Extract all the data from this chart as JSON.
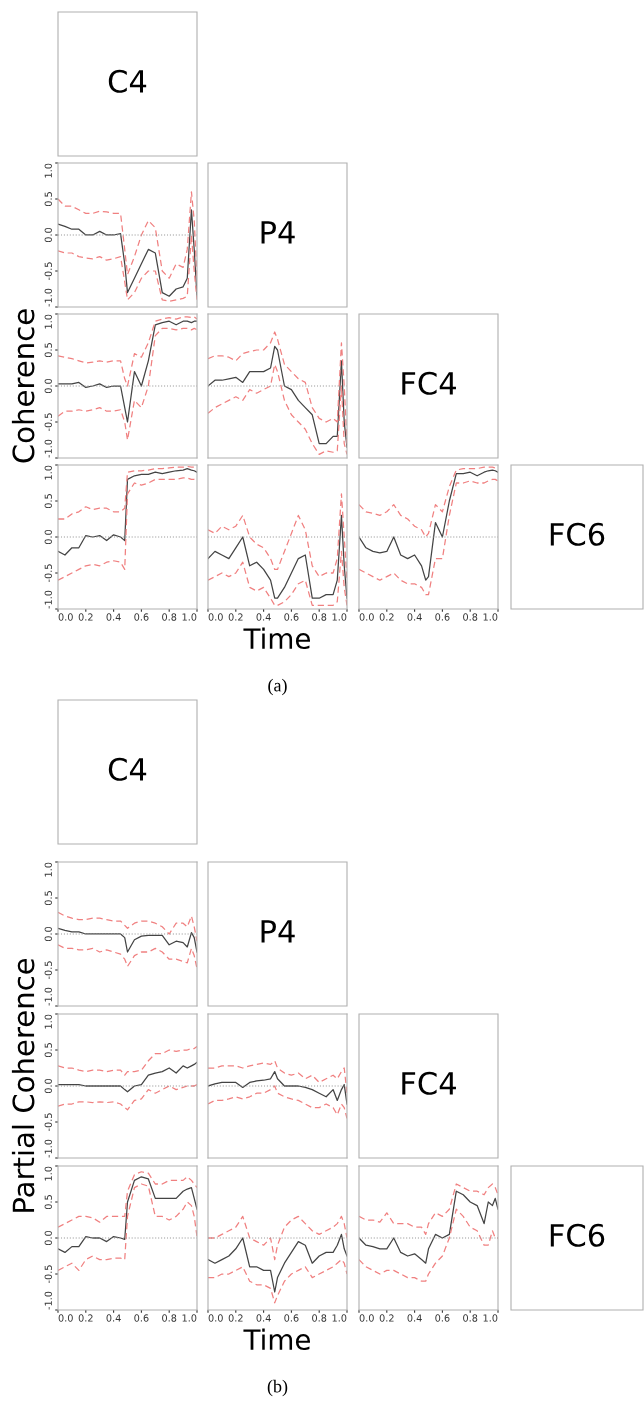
{
  "chart_data": [
    {
      "type": "other",
      "title": "C4"
    },
    {
      "type": "line",
      "x": [
        0,
        0.05,
        0.1,
        0.15,
        0.2,
        0.25,
        0.3,
        0.35,
        0.4,
        0.45,
        0.48,
        0.5,
        0.55,
        0.6,
        0.65,
        0.7,
        0.75,
        0.8,
        0.85,
        0.9,
        0.93,
        0.96,
        0.98,
        1.0
      ],
      "xlim": [
        0,
        1
      ],
      "ylim": [
        -1,
        1
      ],
      "yticks": [
        {
          "value": -1,
          "label": "-1.0"
        },
        {
          "value": -0.5,
          "label": "-0.5"
        },
        {
          "value": 0,
          "label": "0.0"
        },
        {
          "value": 0.5,
          "label": "0.5"
        },
        {
          "value": 1,
          "label": "1.0"
        }
      ],
      "tick_labels": "y",
      "ref_lines": [
        {
          "axis": "y",
          "value": 0,
          "color": "#999999",
          "line_style": "dotted"
        }
      ],
      "series": [
        {
          "color": "#444444",
          "values": [
            0.15,
            0.12,
            0.08,
            0.08,
            0.0,
            0.0,
            0.05,
            0.0,
            0.0,
            0.02,
            -0.4,
            -0.8,
            -0.6,
            -0.4,
            -0.2,
            -0.25,
            -0.8,
            -0.85,
            -0.75,
            -0.72,
            -0.6,
            0.35,
            -0.2,
            -0.85
          ]
        },
        {
          "color": "#f08080",
          "line_style": "dashed",
          "values": [
            0.5,
            0.4,
            0.4,
            0.35,
            0.3,
            0.3,
            0.33,
            0.32,
            0.3,
            0.3,
            -0.2,
            -0.55,
            -0.3,
            0.0,
            0.2,
            0.1,
            -0.5,
            -0.6,
            -0.4,
            -0.45,
            -0.2,
            0.6,
            0.2,
            -0.6
          ]
        },
        {
          "color": "#f08080",
          "line_style": "dashed",
          "values": [
            -0.22,
            -0.25,
            -0.25,
            -0.3,
            -0.32,
            -0.33,
            -0.3,
            -0.35,
            -0.33,
            -0.3,
            -0.65,
            -0.9,
            -0.8,
            -0.6,
            -0.5,
            -0.5,
            -0.9,
            -0.92,
            -0.9,
            -0.88,
            -0.85,
            0.0,
            -0.5,
            -0.9
          ]
        }
      ]
    },
    {
      "type": "other",
      "title": "P4"
    },
    {
      "type": "line",
      "ylabel": "Coherence",
      "x": [
        0,
        0.05,
        0.1,
        0.15,
        0.2,
        0.25,
        0.3,
        0.35,
        0.4,
        0.45,
        0.48,
        0.5,
        0.55,
        0.6,
        0.65,
        0.7,
        0.75,
        0.8,
        0.85,
        0.9,
        0.93,
        0.96,
        0.98,
        1.0
      ],
      "xlim": [
        0,
        1
      ],
      "ylim": [
        -1,
        1
      ],
      "yticks": [
        {
          "value": -1,
          "label": "-1.0"
        },
        {
          "value": -0.5,
          "label": "-0.5"
        },
        {
          "value": 0,
          "label": "0.0"
        },
        {
          "value": 0.5,
          "label": "0.5"
        },
        {
          "value": 1,
          "label": "1.0"
        }
      ],
      "tick_labels": "y",
      "ref_lines": [
        {
          "axis": "y",
          "value": 0,
          "color": "#999999",
          "line_style": "dotted"
        }
      ],
      "series": [
        {
          "color": "#444444",
          "values": [
            0.03,
            0.03,
            0.03,
            0.05,
            -0.02,
            0.0,
            0.03,
            -0.02,
            0.0,
            0.0,
            -0.3,
            -0.5,
            0.2,
            0.0,
            0.35,
            0.85,
            0.88,
            0.9,
            0.85,
            0.9,
            0.9,
            0.88,
            0.9,
            0.9
          ]
        },
        {
          "color": "#f08080",
          "line_style": "dashed",
          "values": [
            0.42,
            0.4,
            0.38,
            0.35,
            0.32,
            0.33,
            0.35,
            0.33,
            0.35,
            0.35,
            0.1,
            0.0,
            0.45,
            0.4,
            0.6,
            0.9,
            0.93,
            0.95,
            0.93,
            0.96,
            0.96,
            0.95,
            0.96,
            0.93
          ]
        },
        {
          "color": "#f08080",
          "line_style": "dashed",
          "values": [
            -0.42,
            -0.35,
            -0.35,
            -0.33,
            -0.35,
            -0.33,
            -0.3,
            -0.35,
            -0.35,
            -0.33,
            -0.5,
            -0.75,
            -0.2,
            -0.3,
            0.0,
            0.7,
            0.8,
            0.8,
            0.78,
            0.8,
            0.8,
            0.78,
            0.8,
            0.78
          ]
        }
      ]
    },
    {
      "type": "line",
      "x": [
        0,
        0.05,
        0.1,
        0.15,
        0.2,
        0.25,
        0.3,
        0.35,
        0.4,
        0.45,
        0.48,
        0.5,
        0.55,
        0.6,
        0.65,
        0.7,
        0.75,
        0.8,
        0.85,
        0.9,
        0.93,
        0.96,
        0.98,
        1.0
      ],
      "xlim": [
        0,
        1
      ],
      "ylim": [
        -1,
        1
      ],
      "tick_labels": false,
      "ref_lines": [
        {
          "axis": "y",
          "value": 0,
          "color": "#999999",
          "line_style": "dotted"
        }
      ],
      "series": [
        {
          "color": "#444444",
          "values": [
            0.0,
            0.08,
            0.08,
            0.1,
            0.12,
            0.05,
            0.2,
            0.2,
            0.2,
            0.25,
            0.55,
            0.5,
            0.0,
            -0.05,
            -0.2,
            -0.3,
            -0.4,
            -0.8,
            -0.8,
            -0.7,
            -0.7,
            0.35,
            -0.5,
            -0.85
          ]
        },
        {
          "color": "#f08080",
          "line_style": "dashed",
          "values": [
            0.38,
            0.42,
            0.42,
            0.4,
            0.35,
            0.45,
            0.48,
            0.5,
            0.5,
            0.6,
            0.75,
            0.65,
            0.3,
            0.2,
            0.1,
            0.05,
            -0.3,
            -0.45,
            -0.5,
            -0.45,
            -0.5,
            0.6,
            0.0,
            -0.8
          ]
        },
        {
          "color": "#f08080",
          "line_style": "dashed",
          "values": [
            -0.38,
            -0.3,
            -0.25,
            -0.2,
            -0.15,
            -0.2,
            -0.05,
            -0.1,
            -0.05,
            0.0,
            0.3,
            0.2,
            -0.2,
            -0.4,
            -0.5,
            -0.6,
            -0.8,
            -0.95,
            -0.9,
            -0.92,
            -0.9,
            0.0,
            -0.8,
            -0.95
          ]
        }
      ]
    },
    {
      "type": "other",
      "title": "FC4"
    },
    {
      "type": "line",
      "x": [
        0,
        0.05,
        0.1,
        0.15,
        0.2,
        0.25,
        0.3,
        0.35,
        0.4,
        0.45,
        0.48,
        0.5,
        0.55,
        0.6,
        0.65,
        0.7,
        0.75,
        0.8,
        0.85,
        0.9,
        0.93,
        0.96,
        0.98,
        1.0
      ],
      "xlim": [
        0,
        1
      ],
      "ylim": [
        -1,
        1
      ],
      "xticks": [
        {
          "value": 0,
          "label": "0.0"
        },
        {
          "value": 0.2,
          "label": "0.2"
        },
        {
          "value": 0.4,
          "label": "0.4"
        },
        {
          "value": 0.6,
          "label": "0.6"
        },
        {
          "value": 0.8,
          "label": "0.8"
        },
        {
          "value": 1,
          "label": "1.0"
        }
      ],
      "yticks": [
        {
          "value": -1,
          "label": "-1.0"
        },
        {
          "value": -0.5,
          "label": "-0.5"
        },
        {
          "value": 0,
          "label": "0.0"
        },
        {
          "value": 0.5,
          "label": "0.5"
        },
        {
          "value": 1,
          "label": "1.0"
        }
      ],
      "ref_lines": [
        {
          "axis": "y",
          "value": 0,
          "color": "#999999",
          "line_style": "dotted"
        }
      ],
      "series": [
        {
          "color": "#444444",
          "values": [
            -0.2,
            -0.25,
            -0.15,
            -0.15,
            0.02,
            0.0,
            0.02,
            -0.05,
            0.03,
            0.0,
            -0.05,
            0.8,
            0.85,
            0.87,
            0.87,
            0.9,
            0.88,
            0.9,
            0.92,
            0.93,
            0.95,
            0.93,
            0.92,
            0.9
          ]
        },
        {
          "color": "#f08080",
          "line_style": "dashed",
          "values": [
            0.25,
            0.25,
            0.32,
            0.35,
            0.42,
            0.38,
            0.4,
            0.4,
            0.35,
            0.35,
            0.4,
            0.9,
            0.92,
            0.92,
            0.93,
            0.95,
            0.95,
            0.96,
            0.97,
            0.97,
            0.98,
            0.97,
            0.97,
            0.96
          ]
        },
        {
          "color": "#f08080",
          "line_style": "dashed",
          "values": [
            -0.6,
            -0.55,
            -0.5,
            -0.45,
            -0.4,
            -0.38,
            -0.4,
            -0.35,
            -0.33,
            -0.35,
            -0.45,
            0.6,
            0.75,
            0.72,
            0.75,
            0.8,
            0.8,
            0.8,
            0.8,
            0.82,
            0.82,
            0.8,
            0.8,
            0.78
          ]
        }
      ]
    },
    {
      "type": "line",
      "xlabel": "Time",
      "annotations": [
        "(a)"
      ],
      "x": [
        0,
        0.05,
        0.1,
        0.15,
        0.2,
        0.25,
        0.3,
        0.35,
        0.4,
        0.45,
        0.48,
        0.5,
        0.55,
        0.6,
        0.65,
        0.7,
        0.75,
        0.8,
        0.85,
        0.9,
        0.93,
        0.96,
        0.98,
        1.0
      ],
      "xlim": [
        0,
        1
      ],
      "ylim": [
        -1,
        1
      ],
      "xticks": [
        {
          "value": 0,
          "label": "0.0"
        },
        {
          "value": 0.2,
          "label": "0.2"
        },
        {
          "value": 0.4,
          "label": "0.4"
        },
        {
          "value": 0.6,
          "label": "0.6"
        },
        {
          "value": 0.8,
          "label": "0.8"
        },
        {
          "value": 1,
          "label": "1.0"
        }
      ],
      "tick_labels": "x",
      "ref_lines": [
        {
          "axis": "y",
          "value": 0,
          "color": "#999999",
          "line_style": "dotted"
        }
      ],
      "series": [
        {
          "color": "#444444",
          "values": [
            -0.3,
            -0.2,
            -0.25,
            -0.3,
            -0.15,
            0.0,
            -0.4,
            -0.35,
            -0.45,
            -0.6,
            -0.85,
            -0.85,
            -0.7,
            -0.5,
            -0.3,
            -0.25,
            -0.85,
            -0.85,
            -0.8,
            -0.8,
            -0.6,
            0.3,
            -0.4,
            -0.85
          ]
        },
        {
          "color": "#f08080",
          "line_style": "dashed",
          "values": [
            0.1,
            0.05,
            0.15,
            0.1,
            0.15,
            0.3,
            0.0,
            -0.1,
            -0.15,
            -0.3,
            -0.45,
            -0.45,
            -0.2,
            0.05,
            0.3,
            0.1,
            -0.4,
            -0.55,
            -0.5,
            -0.5,
            -0.3,
            0.6,
            0.0,
            -0.6
          ]
        },
        {
          "color": "#f08080",
          "line_style": "dashed",
          "values": [
            -0.6,
            -0.55,
            -0.5,
            -0.55,
            -0.5,
            -0.35,
            -0.7,
            -0.75,
            -0.7,
            -0.85,
            -0.95,
            -0.95,
            -0.9,
            -0.8,
            -0.65,
            -0.6,
            -0.95,
            -0.95,
            -0.95,
            -0.95,
            -0.9,
            -0.2,
            -0.7,
            -0.95
          ]
        }
      ]
    },
    {
      "type": "line",
      "x": [
        0,
        0.05,
        0.1,
        0.15,
        0.2,
        0.25,
        0.3,
        0.35,
        0.4,
        0.45,
        0.48,
        0.5,
        0.55,
        0.6,
        0.65,
        0.7,
        0.75,
        0.8,
        0.85,
        0.9,
        0.93,
        0.96,
        0.98,
        1.0
      ],
      "xlim": [
        0,
        1
      ],
      "ylim": [
        -1,
        1
      ],
      "xticks": [
        {
          "value": 0,
          "label": "0.0"
        },
        {
          "value": 0.2,
          "label": "0.2"
        },
        {
          "value": 0.4,
          "label": "0.4"
        },
        {
          "value": 0.6,
          "label": "0.6"
        },
        {
          "value": 0.8,
          "label": "0.8"
        },
        {
          "value": 1,
          "label": "1.0"
        }
      ],
      "tick_labels": "x",
      "ref_lines": [
        {
          "axis": "y",
          "value": 0,
          "color": "#999999",
          "line_style": "dotted"
        }
      ],
      "series": [
        {
          "color": "#444444",
          "values": [
            0.0,
            -0.15,
            -0.2,
            -0.22,
            -0.2,
            0.0,
            -0.25,
            -0.3,
            -0.25,
            -0.4,
            -0.6,
            -0.55,
            0.2,
            0.0,
            0.5,
            0.88,
            0.88,
            0.9,
            0.85,
            0.9,
            0.92,
            0.93,
            0.92,
            0.9
          ]
        },
        {
          "color": "#f08080",
          "line_style": "dashed",
          "values": [
            0.45,
            0.35,
            0.33,
            0.3,
            0.35,
            0.45,
            0.3,
            0.25,
            0.15,
            0.1,
            0.0,
            0.05,
            0.45,
            0.35,
            0.7,
            0.93,
            0.95,
            0.95,
            0.95,
            0.97,
            0.97,
            0.97,
            0.96,
            0.95
          ]
        },
        {
          "color": "#f08080",
          "line_style": "dashed",
          "values": [
            -0.45,
            -0.5,
            -0.55,
            -0.6,
            -0.55,
            -0.5,
            -0.6,
            -0.65,
            -0.65,
            -0.7,
            -0.8,
            -0.8,
            -0.3,
            -0.3,
            0.3,
            0.75,
            0.75,
            0.78,
            0.75,
            0.75,
            0.78,
            0.8,
            0.8,
            0.78
          ]
        }
      ]
    },
    {
      "type": "other",
      "title": "FC6"
    },
    {
      "type": "other",
      "title": "C4"
    },
    {
      "type": "line",
      "x": [
        0,
        0.05,
        0.1,
        0.15,
        0.2,
        0.25,
        0.3,
        0.35,
        0.4,
        0.45,
        0.48,
        0.5,
        0.55,
        0.6,
        0.65,
        0.7,
        0.75,
        0.8,
        0.85,
        0.9,
        0.93,
        0.96,
        0.98,
        1.0
      ],
      "xlim": [
        0,
        1
      ],
      "ylim": [
        -1,
        1
      ],
      "yticks": [
        {
          "value": -1,
          "label": "-1.0"
        },
        {
          "value": -0.5,
          "label": "-0.5"
        },
        {
          "value": 0,
          "label": "0.0"
        },
        {
          "value": 0.5,
          "label": "0.5"
        },
        {
          "value": 1,
          "label": "1.0"
        }
      ],
      "tick_labels": "y",
      "ref_lines": [
        {
          "axis": "y",
          "value": 0,
          "color": "#999999",
          "line_style": "dotted"
        }
      ],
      "series": [
        {
          "color": "#444444",
          "values": [
            0.08,
            0.05,
            0.03,
            0.03,
            0.0,
            0.0,
            0.0,
            0.0,
            0.0,
            0.0,
            -0.05,
            -0.25,
            -0.08,
            -0.03,
            -0.02,
            -0.02,
            -0.02,
            -0.15,
            -0.1,
            -0.12,
            -0.18,
            0.02,
            -0.05,
            -0.25
          ]
        },
        {
          "color": "#f08080",
          "line_style": "dashed",
          "values": [
            0.3,
            0.25,
            0.22,
            0.2,
            0.2,
            0.22,
            0.22,
            0.2,
            0.18,
            0.18,
            0.12,
            0.08,
            0.15,
            0.18,
            0.18,
            0.15,
            0.1,
            0.0,
            0.15,
            0.15,
            0.1,
            0.25,
            0.1,
            -0.1
          ]
        },
        {
          "color": "#f08080",
          "line_style": "dashed",
          "values": [
            -0.15,
            -0.2,
            -0.2,
            -0.22,
            -0.22,
            -0.2,
            -0.25,
            -0.22,
            -0.25,
            -0.28,
            -0.35,
            -0.45,
            -0.3,
            -0.25,
            -0.25,
            -0.2,
            -0.25,
            -0.35,
            -0.35,
            -0.38,
            -0.4,
            -0.2,
            -0.3,
            -0.48
          ]
        }
      ]
    },
    {
      "type": "other",
      "title": "P4"
    },
    {
      "type": "line",
      "ylabel": "Partial Coherence",
      "x": [
        0,
        0.05,
        0.1,
        0.15,
        0.2,
        0.25,
        0.3,
        0.35,
        0.4,
        0.45,
        0.48,
        0.5,
        0.55,
        0.6,
        0.65,
        0.7,
        0.75,
        0.8,
        0.85,
        0.9,
        0.93,
        0.96,
        0.98,
        1.0
      ],
      "xlim": [
        0,
        1
      ],
      "ylim": [
        -1,
        1
      ],
      "yticks": [
        {
          "value": -1,
          "label": "-1.0"
        },
        {
          "value": -0.5,
          "label": "-0.5"
        },
        {
          "value": 0,
          "label": "0.0"
        },
        {
          "value": 0.5,
          "label": "0.5"
        },
        {
          "value": 1,
          "label": "1.0"
        }
      ],
      "tick_labels": "y",
      "ref_lines": [
        {
          "axis": "y",
          "value": 0,
          "color": "#999999",
          "line_style": "dotted"
        }
      ],
      "series": [
        {
          "color": "#444444",
          "values": [
            0.02,
            0.02,
            0.02,
            0.02,
            0.0,
            0.0,
            0.0,
            0.0,
            0.0,
            0.0,
            -0.05,
            -0.08,
            0.0,
            0.02,
            0.15,
            0.18,
            0.2,
            0.25,
            0.18,
            0.28,
            0.25,
            0.28,
            0.3,
            0.33
          ]
        },
        {
          "color": "#f08080",
          "line_style": "dashed",
          "values": [
            0.28,
            0.25,
            0.25,
            0.22,
            0.2,
            0.22,
            0.22,
            0.2,
            0.22,
            0.22,
            0.15,
            0.2,
            0.2,
            0.22,
            0.35,
            0.45,
            0.45,
            0.5,
            0.48,
            0.5,
            0.5,
            0.52,
            0.52,
            0.55
          ]
        },
        {
          "color": "#f08080",
          "line_style": "dashed",
          "values": [
            -0.28,
            -0.25,
            -0.25,
            -0.22,
            -0.22,
            -0.23,
            -0.22,
            -0.23,
            -0.22,
            -0.25,
            -0.3,
            -0.33,
            -0.2,
            -0.18,
            -0.05,
            -0.1,
            -0.05,
            0.0,
            -0.05,
            -0.02,
            0.0,
            0.0,
            0.0,
            0.02
          ]
        }
      ]
    },
    {
      "type": "line",
      "x": [
        0,
        0.05,
        0.1,
        0.15,
        0.2,
        0.25,
        0.3,
        0.35,
        0.4,
        0.45,
        0.48,
        0.5,
        0.55,
        0.6,
        0.65,
        0.7,
        0.75,
        0.8,
        0.85,
        0.9,
        0.93,
        0.96,
        0.98,
        1.0
      ],
      "xlim": [
        0,
        1
      ],
      "ylim": [
        -1,
        1
      ],
      "tick_labels": false,
      "ref_lines": [
        {
          "axis": "y",
          "value": 0,
          "color": "#999999",
          "line_style": "dotted"
        }
      ],
      "series": [
        {
          "color": "#444444",
          "values": [
            0.0,
            0.03,
            0.05,
            0.05,
            0.05,
            -0.02,
            0.05,
            0.07,
            0.08,
            0.1,
            0.2,
            0.1,
            0.0,
            0.0,
            0.0,
            -0.02,
            -0.05,
            -0.1,
            -0.15,
            -0.05,
            -0.2,
            -0.05,
            0.02,
            -0.25
          ]
        },
        {
          "color": "#f08080",
          "line_style": "dashed",
          "values": [
            0.25,
            0.25,
            0.28,
            0.28,
            0.28,
            0.25,
            0.28,
            0.3,
            0.32,
            0.3,
            0.35,
            0.25,
            0.18,
            0.15,
            0.18,
            0.1,
            0.15,
            0.05,
            0.1,
            0.15,
            0.1,
            0.2,
            0.25,
            -0.1
          ]
        },
        {
          "color": "#f08080",
          "line_style": "dashed",
          "values": [
            -0.25,
            -0.2,
            -0.2,
            -0.18,
            -0.15,
            -0.18,
            -0.15,
            -0.1,
            -0.1,
            -0.05,
            0.0,
            -0.1,
            -0.15,
            -0.18,
            -0.2,
            -0.25,
            -0.3,
            -0.3,
            -0.25,
            -0.3,
            -0.4,
            -0.25,
            -0.3,
            -0.45
          ]
        }
      ]
    },
    {
      "type": "other",
      "title": "FC4"
    },
    {
      "type": "line",
      "x": [
        0,
        0.05,
        0.1,
        0.15,
        0.2,
        0.25,
        0.3,
        0.35,
        0.4,
        0.45,
        0.48,
        0.5,
        0.55,
        0.6,
        0.65,
        0.7,
        0.75,
        0.8,
        0.85,
        0.9,
        0.93,
        0.96,
        0.98,
        1.0
      ],
      "xlim": [
        0,
        1
      ],
      "ylim": [
        -1,
        1
      ],
      "xticks": [
        {
          "value": 0,
          "label": "0.0"
        },
        {
          "value": 0.2,
          "label": "0.2"
        },
        {
          "value": 0.4,
          "label": "0.4"
        },
        {
          "value": 0.6,
          "label": "0.6"
        },
        {
          "value": 0.8,
          "label": "0.8"
        },
        {
          "value": 1,
          "label": "1.0"
        }
      ],
      "yticks": [
        {
          "value": -1,
          "label": "-1.0"
        },
        {
          "value": -0.5,
          "label": "-0.5"
        },
        {
          "value": 0,
          "label": "0.0"
        },
        {
          "value": 0.5,
          "label": "0.5"
        },
        {
          "value": 1,
          "label": "1.0"
        }
      ],
      "ref_lines": [
        {
          "axis": "y",
          "value": 0,
          "color": "#999999",
          "line_style": "dotted"
        }
      ],
      "series": [
        {
          "color": "#444444",
          "values": [
            -0.15,
            -0.2,
            -0.12,
            -0.12,
            0.02,
            0.0,
            0.0,
            -0.05,
            0.02,
            0.0,
            -0.02,
            0.5,
            0.8,
            0.85,
            0.82,
            0.55,
            0.55,
            0.55,
            0.55,
            0.65,
            0.68,
            0.7,
            0.55,
            0.4
          ]
        },
        {
          "color": "#f08080",
          "line_style": "dashed",
          "values": [
            0.15,
            0.2,
            0.25,
            0.3,
            0.3,
            0.28,
            0.22,
            0.3,
            0.3,
            0.3,
            0.3,
            0.65,
            0.88,
            0.92,
            0.9,
            0.75,
            0.75,
            0.8,
            0.8,
            0.8,
            0.85,
            0.8,
            0.75,
            0.7
          ]
        },
        {
          "color": "#f08080",
          "line_style": "dashed",
          "values": [
            -0.45,
            -0.4,
            -0.35,
            -0.45,
            -0.3,
            -0.25,
            -0.3,
            -0.3,
            -0.28,
            -0.28,
            -0.3,
            0.3,
            0.7,
            0.75,
            0.72,
            0.3,
            0.3,
            0.25,
            0.3,
            0.4,
            0.5,
            0.45,
            0.3,
            0.02
          ]
        }
      ]
    },
    {
      "type": "line",
      "xlabel": "Time",
      "annotations": [
        "(b)"
      ],
      "x": [
        0,
        0.05,
        0.1,
        0.15,
        0.2,
        0.25,
        0.3,
        0.35,
        0.4,
        0.45,
        0.48,
        0.5,
        0.55,
        0.6,
        0.65,
        0.7,
        0.75,
        0.8,
        0.85,
        0.9,
        0.93,
        0.96,
        0.98,
        1.0
      ],
      "xlim": [
        0,
        1
      ],
      "ylim": [
        -1,
        1
      ],
      "xticks": [
        {
          "value": 0,
          "label": "0.0"
        },
        {
          "value": 0.2,
          "label": "0.2"
        },
        {
          "value": 0.4,
          "label": "0.4"
        },
        {
          "value": 0.6,
          "label": "0.6"
        },
        {
          "value": 0.8,
          "label": "0.8"
        },
        {
          "value": 1,
          "label": "1.0"
        }
      ],
      "tick_labels": "x",
      "ref_lines": [
        {
          "axis": "y",
          "value": 0,
          "color": "#999999",
          "line_style": "dotted"
        }
      ],
      "series": [
        {
          "color": "#444444",
          "values": [
            -0.3,
            -0.35,
            -0.3,
            -0.25,
            -0.15,
            0.0,
            -0.4,
            -0.4,
            -0.45,
            -0.45,
            -0.75,
            -0.55,
            -0.35,
            -0.2,
            -0.05,
            -0.1,
            -0.35,
            -0.25,
            -0.2,
            -0.2,
            -0.1,
            0.05,
            -0.15,
            -0.25
          ]
        },
        {
          "color": "#f08080",
          "line_style": "dashed",
          "values": [
            0.0,
            0.0,
            0.05,
            0.1,
            0.15,
            0.3,
            0.0,
            -0.05,
            -0.1,
            0.0,
            -0.3,
            -0.1,
            0.15,
            0.25,
            0.3,
            0.2,
            0.1,
            0.05,
            0.1,
            0.15,
            0.2,
            0.3,
            0.2,
            0.0
          ]
        },
        {
          "color": "#f08080",
          "line_style": "dashed",
          "values": [
            -0.55,
            -0.55,
            -0.5,
            -0.5,
            -0.45,
            -0.4,
            -0.6,
            -0.65,
            -0.65,
            -0.7,
            -0.9,
            -0.8,
            -0.6,
            -0.5,
            -0.45,
            -0.4,
            -0.55,
            -0.5,
            -0.45,
            -0.4,
            -0.35,
            -0.3,
            -0.35,
            -0.5
          ]
        }
      ]
    },
    {
      "type": "line",
      "x": [
        0,
        0.05,
        0.1,
        0.15,
        0.2,
        0.25,
        0.3,
        0.35,
        0.4,
        0.45,
        0.48,
        0.5,
        0.55,
        0.6,
        0.65,
        0.7,
        0.75,
        0.8,
        0.85,
        0.9,
        0.93,
        0.96,
        0.98,
        1.0
      ],
      "xlim": [
        0,
        1
      ],
      "ylim": [
        -1,
        1
      ],
      "xticks": [
        {
          "value": 0,
          "label": "0.0"
        },
        {
          "value": 0.2,
          "label": "0.2"
        },
        {
          "value": 0.4,
          "label": "0.4"
        },
        {
          "value": 0.6,
          "label": "0.6"
        },
        {
          "value": 0.8,
          "label": "0.8"
        },
        {
          "value": 1,
          "label": "1.0"
        }
      ],
      "tick_labels": "x",
      "ref_lines": [
        {
          "axis": "y",
          "value": 0,
          "color": "#999999",
          "line_style": "dotted"
        }
      ],
      "series": [
        {
          "color": "#444444",
          "values": [
            0.0,
            -0.1,
            -0.12,
            -0.15,
            -0.15,
            0.0,
            -0.2,
            -0.25,
            -0.22,
            -0.3,
            -0.35,
            -0.15,
            0.05,
            0.0,
            0.05,
            0.65,
            0.6,
            0.5,
            0.45,
            0.2,
            0.5,
            0.45,
            0.55,
            0.4
          ]
        },
        {
          "color": "#f08080",
          "line_style": "dashed",
          "values": [
            0.3,
            0.25,
            0.25,
            0.22,
            0.35,
            0.2,
            0.2,
            0.2,
            0.15,
            0.15,
            0.05,
            0.2,
            0.35,
            0.3,
            0.4,
            0.75,
            0.7,
            0.65,
            0.65,
            0.6,
            0.7,
            0.75,
            0.7,
            0.6
          ]
        },
        {
          "color": "#f08080",
          "line_style": "dashed",
          "values": [
            -0.3,
            -0.4,
            -0.45,
            -0.5,
            -0.45,
            -0.45,
            -0.5,
            -0.55,
            -0.55,
            -0.6,
            -0.6,
            -0.5,
            -0.35,
            -0.25,
            0.0,
            0.4,
            0.3,
            0.15,
            0.1,
            -0.1,
            -0.1,
            0.1,
            0.0,
            0.0
          ]
        }
      ]
    },
    {
      "type": "other",
      "title": "FC6"
    }
  ]
}
